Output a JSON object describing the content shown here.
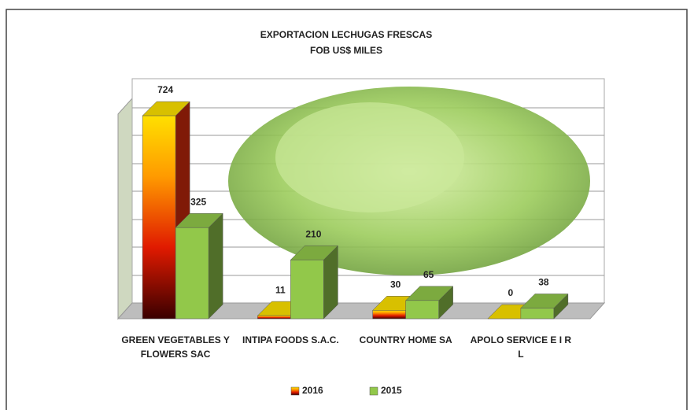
{
  "chart_data": {
    "type": "bar3d",
    "title": "EXPORTACION LECHUGAS FRESCAS",
    "subtitle": "FOB US$ MILES",
    "categories": [
      "GREEN VEGETABLES Y FLOWERS SAC",
      "INTIPA FOODS S.A.C.",
      "COUNTRY HOME SA",
      "APOLO SERVICE E I R L"
    ],
    "series": [
      {
        "name": "2016",
        "color": "#e8300c",
        "values": [
          724,
          11,
          30,
          0
        ]
      },
      {
        "name": "2015",
        "color": "#92c84a",
        "values": [
          325,
          210,
          65,
          38
        ]
      }
    ],
    "ylim": [
      0,
      800
    ],
    "legend": "bottom"
  }
}
